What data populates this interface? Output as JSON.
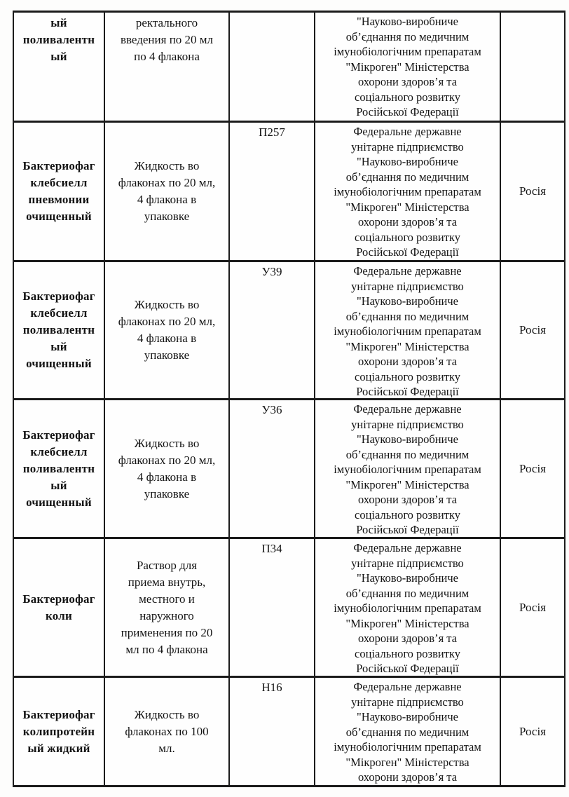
{
  "document": {
    "kind": "scanned registry table page (continuation)",
    "text_color": "#141414",
    "border_color": "#1b1b1b",
    "page_background": "#fdfdfc"
  },
  "table": {
    "rows": [
      {
        "name": "ый\nполивалентн\nый",
        "form": "ректального\nвведения по 20 мл\nпо 4 флакона",
        "code": "",
        "manufacturer": "\"Науково-виробниче\nоб’єднання по медичним\nімунобіологічним препаратам\n\"Мікроген\" Міністерства\nохорони здоров’я та\nсоціального розвитку\nРосійської Федерації",
        "country": ""
      },
      {
        "name": "Бактериофаг\nклебсиелл\nпневмонии\nочищенный",
        "form": "Жидкость во\nфлаконах по 20 мл,\n4 флакона в\nупаковке",
        "code": "П257",
        "manufacturer": "Федеральне державне\nунітарне підприємство\n\"Науково-виробниче\nоб’єднання по медичним\nімунобіологічним препаратам\n\"Мікроген\" Міністерства\nохорони здоров’я та\nсоціального розвитку\nРосійської Федерації",
        "country": "Росія"
      },
      {
        "name": "Бактериофаг\nклебсиелл\nполивалентн\nый\nочищенный",
        "form": "Жидкость во\nфлаконах по 20 мл,\n4 флакона в\nупаковке",
        "code": "У39",
        "manufacturer": "Федеральне державне\nунітарне підприємство\n\"Науково-виробниче\nоб’єднання по медичним\nімунобіологічним препаратам\n\"Мікроген\" Міністерства\nохорони здоров’я та\nсоціального розвитку\nРосійської Федерації",
        "country": "Росія"
      },
      {
        "name": "Бактериофаг\nклебсиелл\nполивалентн\nый\nочищенный",
        "form": "Жидкость во\nфлаконах по 20 мл,\n4 флакона в\nупаковке",
        "code": "У36",
        "manufacturer": "Федеральне державне\nунітарне підприємство\n\"Науково-виробниче\nоб’єднання по медичним\nімунобіологічним препаратам\n\"Мікроген\" Міністерства\nохорони здоров’я та\nсоціального розвитку\nРосійської Федерації",
        "country": "Росія"
      },
      {
        "name": "Бактериофаг\nколи",
        "form": "Раствор для\nприема внутрь,\nместного и\nнаружного\nприменения по 20\nмл по 4 флакона",
        "code": "П34",
        "manufacturer": "Федеральне державне\nунітарне підприємство\n\"Науково-виробниче\nоб’єднання по медичним\nімунобіологічним препаратам\n\"Мікроген\" Міністерства\nохорони здоров’я та\nсоціального розвитку\nРосійської Федерації",
        "country": "Росія"
      },
      {
        "name": "Бактериофаг\nколипротейн\nый жидкий",
        "form": "Жидкость во\nфлаконах по 100\nмл.",
        "code": "Н16",
        "manufacturer": "Федеральне державне\nунітарне підприємство\n\"Науково-виробниче\nоб’єднання по медичним\nімунобіологічним препаратам\n\"Мікроген\" Міністерства\nохорони здоров’я та",
        "country": "Росія"
      }
    ]
  }
}
